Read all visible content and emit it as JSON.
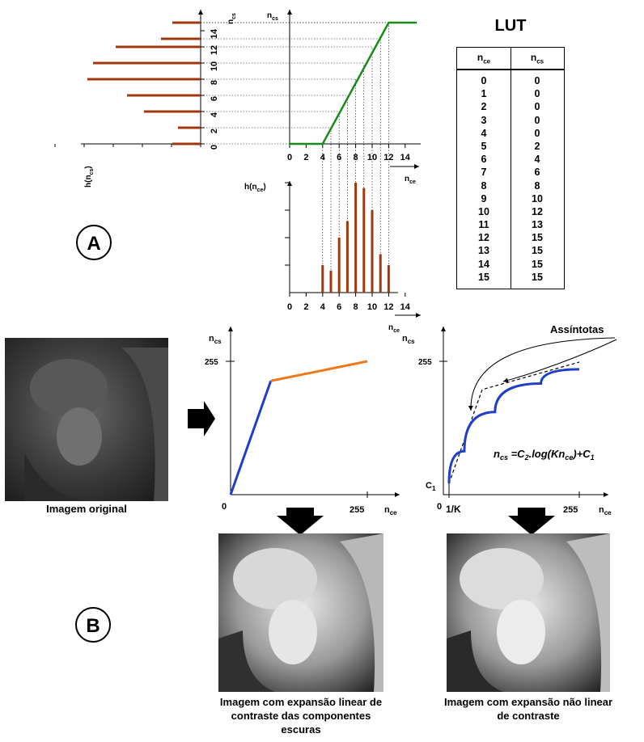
{
  "lut": {
    "title": "LUT",
    "col1": "n",
    "col1_sub": "ce",
    "col2": "n",
    "col2_sub": "cs",
    "rows": [
      [
        "0",
        "0"
      ],
      [
        "1",
        "0"
      ],
      [
        "2",
        "0"
      ],
      [
        "3",
        "0"
      ],
      [
        "4",
        "0"
      ],
      [
        "5",
        "2"
      ],
      [
        "6",
        "4"
      ],
      [
        "7",
        "6"
      ],
      [
        "8",
        "8"
      ],
      [
        "9",
        "10"
      ],
      [
        "10",
        "12"
      ],
      [
        "11",
        "13"
      ],
      [
        "12",
        "15"
      ],
      [
        "13",
        "15"
      ],
      [
        "14",
        "15"
      ],
      [
        "15",
        "15"
      ]
    ]
  },
  "panel_a": {
    "label": "A",
    "transfer_ylabel": "n",
    "transfer_ylabel_sub": "cs",
    "transfer_xlabel": "n",
    "transfer_xlabel_sub": "ce",
    "left_ylabel": "n",
    "left_ylabel_sub": "cs",
    "left_xlabel": "h(n",
    "left_xlabel_sub": "cs",
    "bottom_ylabel": "h(n",
    "bottom_ylabel_sub": "ce",
    "bottom_xlabel": "n",
    "bottom_xlabel_sub": "ce",
    "x_ticks": [
      "0",
      "2",
      "4",
      "6",
      "8",
      "10",
      "12",
      "14"
    ],
    "y_ticks": [
      "0",
      "2",
      "4",
      "6",
      "8",
      "10",
      "12",
      "14"
    ]
  },
  "panel_b": {
    "label": "B",
    "left_chart": {
      "ylabel": "n",
      "ylabel_sub": "cs",
      "xlabel": "n",
      "xlabel_sub": "ce",
      "ytick": "255",
      "xtick0": "0",
      "xtick": "255"
    },
    "right_chart": {
      "ylabel": "n",
      "ylabel_sub": "cs",
      "xlabel": "n",
      "xlabel_sub": "ce",
      "ytick": "255",
      "xtick0": "0",
      "xtick_k": "1/K",
      "xtick": "255",
      "c1": "C",
      "c1_sub": "1",
      "asymptote_label": "Assíntotas",
      "formula": "n_cs = C_2.log(Kn_ce)+C_1"
    },
    "caption_original": "Imagem original",
    "caption_linear": "Imagem com expansão linear de contraste das componentes escuras",
    "caption_nonlinear": "Imagem com expansão não linear de contraste"
  },
  "colors": {
    "transfer": "#1a8a1a",
    "histogram": "#a0380f",
    "blue": "#1f3fc8",
    "orange": "#f07818"
  },
  "chart_data": [
    {
      "type": "line",
      "x": [
        0,
        4,
        12,
        15
      ],
      "y": [
        0,
        0,
        15,
        15
      ],
      "xlabel": "nce",
      "ylabel": "ncs"
    },
    {
      "type": "bar",
      "categories": [
        "4",
        "5",
        "6",
        "7",
        "8",
        "9",
        "10",
        "11",
        "12"
      ],
      "values": [
        5,
        4,
        10,
        13,
        20,
        19,
        15,
        7,
        5
      ],
      "xlabel": "nce",
      "ylabel": "h(nce)"
    },
    {
      "type": "bar",
      "categories": [
        "0",
        "2",
        "4",
        "6",
        "8",
        "10",
        "12",
        "13",
        "15"
      ],
      "values": [
        5,
        4,
        10,
        13,
        20,
        19,
        15,
        7,
        5
      ],
      "xlabel": "h(ncs)",
      "ylabel": "ncs"
    },
    {
      "type": "line",
      "x": [
        0,
        50,
        170
      ],
      "y": [
        0,
        145,
        170
      ],
      "xlabel": "nce",
      "ylabel": "ncs"
    },
    {
      "type": "line",
      "x": [
        0,
        20,
        60,
        120,
        170
      ],
      "y": [
        0,
        45,
        100,
        140,
        160
      ],
      "xlabel": "nce",
      "ylabel": "ncs"
    }
  ]
}
